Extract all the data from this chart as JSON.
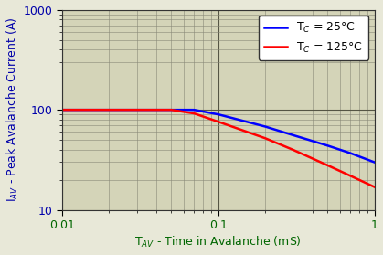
{
  "xlabel": "T$_{AV}$ - Time in Avalanche (mS)",
  "ylabel": "I$_{AV}$ - Peak Avalanche Current (A)",
  "xlim": [
    0.01,
    1.0
  ],
  "ylim": [
    10,
    1000
  ],
  "legend_labels": [
    "T$_C$ = 25°C",
    "T$_C$ = 125°C"
  ],
  "line_colors": [
    "#0000ff",
    "#ff0000"
  ],
  "line_width": 1.8,
  "blue_x": [
    0.01,
    0.07,
    0.1,
    0.2,
    0.3,
    0.5,
    0.7,
    1.0
  ],
  "blue_y": [
    100,
    100,
    90,
    68,
    56,
    44,
    37,
    30
  ],
  "red_x": [
    0.01,
    0.05,
    0.07,
    0.1,
    0.2,
    0.3,
    0.5,
    0.7,
    1.0
  ],
  "red_y": [
    100,
    100,
    92,
    76,
    52,
    40,
    28,
    22,
    17
  ],
  "background_color": "#e8e8d8",
  "plot_bg_color": "#d4d4b8",
  "grid_major_color": "#888877",
  "grid_minor_color": "#aaaaaa",
  "font_color": "#000000",
  "label_color": "#006600",
  "axis_label_fontsize": 9,
  "tick_fontsize": 9,
  "legend_fontsize": 9
}
